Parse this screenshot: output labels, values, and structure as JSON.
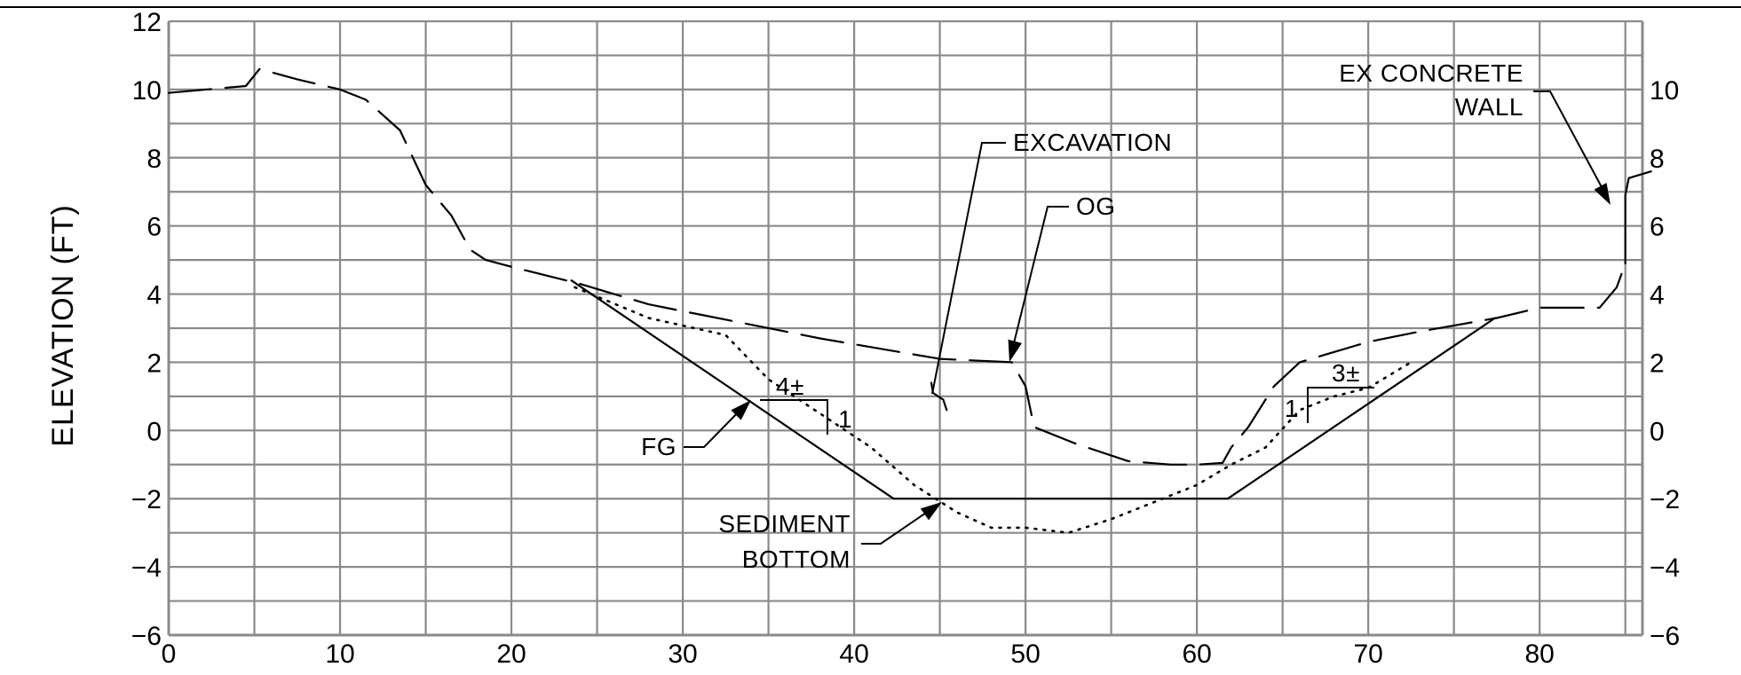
{
  "chart_data": {
    "type": "line",
    "title": "",
    "xlabel": "",
    "ylabel": "ELEVATION (FT)",
    "xlim": [
      0,
      86
    ],
    "ylim": [
      -6,
      12
    ],
    "x_ticks": [
      0,
      10,
      20,
      30,
      40,
      50,
      60,
      70,
      80
    ],
    "y_ticks_left": [
      -6,
      -4,
      -2,
      0,
      2,
      4,
      6,
      8,
      10,
      12
    ],
    "y_ticks_right": [
      -6,
      -4,
      -2,
      0,
      2,
      4,
      6,
      8,
      10
    ],
    "grid": true,
    "series": [
      {
        "name": "OG",
        "style": "dashed",
        "points": [
          [
            0,
            9.9
          ],
          [
            4.5,
            10.1
          ],
          [
            5.3,
            10.6
          ],
          [
            7.5,
            10.3
          ],
          [
            10,
            10
          ],
          [
            11.5,
            9.7
          ],
          [
            13.5,
            8.8
          ],
          [
            15,
            7.2
          ],
          [
            16.5,
            6.3
          ],
          [
            17.6,
            5.3
          ],
          [
            18.5,
            5.0
          ],
          [
            20,
            4.8
          ],
          [
            24,
            4.3
          ],
          [
            28,
            3.7
          ],
          [
            33,
            3.2
          ],
          [
            38,
            2.7
          ],
          [
            45,
            2.1
          ],
          [
            49.2,
            2.0
          ],
          [
            50,
            1.3
          ],
          [
            50.5,
            0.1
          ],
          [
            53,
            -0.4
          ],
          [
            56,
            -0.9
          ],
          [
            58.5,
            -1.0
          ],
          [
            60,
            -1.0
          ],
          [
            61.5,
            -0.95
          ],
          [
            62,
            -0.5
          ],
          [
            63,
            0.1
          ],
          [
            64.5,
            1.3
          ],
          [
            66,
            2.0
          ],
          [
            70,
            2.6
          ],
          [
            73,
            2.9
          ],
          [
            77.5,
            3.3
          ],
          [
            80,
            3.6
          ],
          [
            81.5,
            3.6
          ],
          [
            83.5,
            3.6
          ],
          [
            84.5,
            4.2
          ],
          [
            85,
            4.9
          ]
        ]
      },
      {
        "name": "EX CONCRETE WALL",
        "style": "solid",
        "points": [
          [
            85,
            4.9
          ],
          [
            85,
            6.9
          ],
          [
            85.2,
            7.4
          ],
          [
            86.5,
            7.6
          ]
        ]
      },
      {
        "name": "FG",
        "style": "solid",
        "points": [
          [
            23.5,
            4.4
          ],
          [
            42.3,
            -2.0
          ],
          [
            61.8,
            -2.0
          ],
          [
            77.4,
            3.3
          ]
        ]
      },
      {
        "name": "SEDIMENT BOTTOM",
        "style": "dotted",
        "points": [
          [
            23.7,
            4.2
          ],
          [
            28,
            3.3
          ],
          [
            32.5,
            2.8
          ],
          [
            35,
            1.5
          ],
          [
            38,
            0.5
          ],
          [
            41,
            -0.5
          ],
          [
            43.5,
            -1.6
          ],
          [
            46,
            -2.4
          ],
          [
            48,
            -2.85
          ],
          [
            50,
            -2.85
          ],
          [
            52.5,
            -3.0
          ],
          [
            55,
            -2.6
          ],
          [
            57.5,
            -2.1
          ],
          [
            60,
            -1.6
          ],
          [
            62,
            -1.0
          ],
          [
            64,
            -0.5
          ],
          [
            66,
            0.6
          ],
          [
            68,
            1.0
          ],
          [
            70,
            1.25
          ],
          [
            72.5,
            2.0
          ]
        ]
      },
      {
        "name": "EXCAVATION",
        "style": "solid",
        "points": [
          [
            44.5,
            1.4
          ],
          [
            44.6,
            1.1
          ],
          [
            45.2,
            0.9
          ],
          [
            45.4,
            0.6
          ]
        ]
      }
    ],
    "annotations": [
      {
        "text": "EX CONCRETE",
        "type": "callout"
      },
      {
        "text": "WALL",
        "type": "callout"
      },
      {
        "text": "EXCAVATION",
        "type": "callout"
      },
      {
        "text": "OG",
        "type": "callout"
      },
      {
        "text": "FG",
        "type": "callout"
      },
      {
        "text": "SEDIMENT",
        "type": "callout"
      },
      {
        "text": "BOTTOM",
        "type": "callout"
      },
      {
        "text": "4±",
        "type": "slope"
      },
      {
        "text": "1",
        "type": "slope"
      },
      {
        "text": "3±",
        "type": "slope"
      },
      {
        "text": "1",
        "type": "slope"
      }
    ]
  }
}
